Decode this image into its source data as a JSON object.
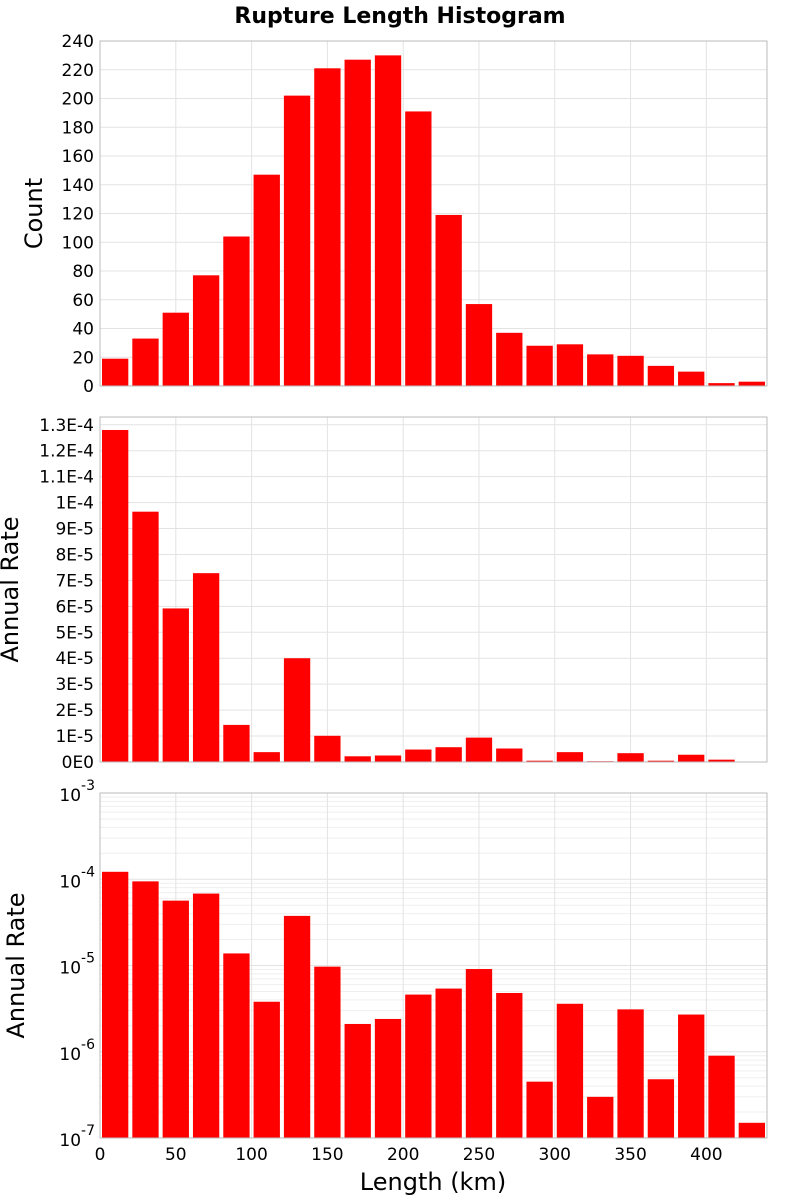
{
  "chart_data": {
    "title": "Rupture Length Histogram",
    "bar_color": "#ff0000",
    "grid": true,
    "xlabel": "Length (km)",
    "x_ticks": [
      "0",
      "50",
      "100",
      "150",
      "200",
      "250",
      "300",
      "350",
      "400"
    ],
    "xlim": [
      0,
      440
    ],
    "bin_width": 20,
    "panels": [
      {
        "type": "bar",
        "ylabel": "Count",
        "scale": "linear",
        "ylim": [
          0,
          240
        ],
        "y_ticks": [
          {
            "v": 0,
            "label": "0"
          },
          {
            "v": 20,
            "label": "20"
          },
          {
            "v": 40,
            "label": "40"
          },
          {
            "v": 60,
            "label": "60"
          },
          {
            "v": 80,
            "label": "80"
          },
          {
            "v": 100,
            "label": "100"
          },
          {
            "v": 120,
            "label": "120"
          },
          {
            "v": 140,
            "label": "140"
          },
          {
            "v": 160,
            "label": "160"
          },
          {
            "v": 180,
            "label": "180"
          },
          {
            "v": 200,
            "label": "200"
          },
          {
            "v": 220,
            "label": "220"
          },
          {
            "v": 240,
            "label": "240"
          }
        ],
        "bin_centers": [
          10,
          30,
          50,
          70,
          90,
          110,
          130,
          150,
          170,
          190,
          210,
          230,
          250,
          270,
          290,
          310,
          330,
          350,
          370,
          390,
          410,
          430
        ],
        "values": [
          19,
          33,
          51,
          77,
          104,
          147,
          202,
          221,
          227,
          230,
          191,
          119,
          57,
          37,
          28,
          29,
          22,
          21,
          14,
          10,
          2,
          3
        ]
      },
      {
        "type": "bar",
        "ylabel": "Annual Rate",
        "scale": "linear",
        "ylim": [
          0,
          0.000133
        ],
        "y_ticks": [
          {
            "v": 0,
            "label": "0E0"
          },
          {
            "v": 1e-05,
            "label": "1E-5"
          },
          {
            "v": 2e-05,
            "label": "2E-5"
          },
          {
            "v": 3e-05,
            "label": "3E-5"
          },
          {
            "v": 4e-05,
            "label": "4E-5"
          },
          {
            "v": 5e-05,
            "label": "5E-5"
          },
          {
            "v": 6e-05,
            "label": "6E-5"
          },
          {
            "v": 7e-05,
            "label": "7E-5"
          },
          {
            "v": 8e-05,
            "label": "8E-5"
          },
          {
            "v": 9e-05,
            "label": "9E-5"
          },
          {
            "v": 0.0001,
            "label": "1E-4"
          },
          {
            "v": 0.00011,
            "label": "1.1E-4"
          },
          {
            "v": 0.00012,
            "label": "1.2E-4"
          },
          {
            "v": 0.00013,
            "label": "1.3E-4"
          }
        ],
        "bin_centers": [
          10,
          30,
          50,
          70,
          90,
          110,
          130,
          150,
          170,
          190,
          210,
          230,
          250,
          270,
          290,
          310,
          330,
          350,
          370,
          390,
          410,
          430
        ],
        "values": [
          0.000128,
          9.65e-05,
          5.92e-05,
          7.28e-05,
          1.43e-05,
          3.8e-06,
          4e-05,
          1.01e-05,
          2.2e-06,
          2.5e-06,
          4.8e-06,
          5.7e-06,
          9.4e-06,
          5.2e-06,
          5e-07,
          3.8e-06,
          3e-07,
          3.4e-06,
          5e-07,
          2.8e-06,
          9e-07,
          1.5e-07
        ]
      },
      {
        "type": "bar",
        "ylabel": "Annual Rate",
        "scale": "log",
        "ylim": [
          1e-07,
          0.001
        ],
        "y_ticks": [
          {
            "v": 1e-07,
            "base": "10",
            "exp": "-7"
          },
          {
            "v": 1e-06,
            "base": "10",
            "exp": "-6"
          },
          {
            "v": 1e-05,
            "base": "10",
            "exp": "-5"
          },
          {
            "v": 0.0001,
            "base": "10",
            "exp": "-4"
          },
          {
            "v": 0.001,
            "base": "10",
            "exp": "-3"
          }
        ],
        "bin_centers": [
          10,
          30,
          50,
          70,
          90,
          110,
          130,
          150,
          170,
          190,
          210,
          230,
          250,
          270,
          290,
          310,
          330,
          350,
          370,
          390,
          410,
          430
        ],
        "values": [
          0.000122,
          9.45e-05,
          5.65e-05,
          6.82e-05,
          1.38e-05,
          3.8e-06,
          3.76e-05,
          9.7e-06,
          2.1e-06,
          2.4e-06,
          4.6e-06,
          5.4e-06,
          9.1e-06,
          4.8e-06,
          4.5e-07,
          3.6e-06,
          3e-07,
          3.1e-06,
          4.8e-07,
          2.7e-06,
          9e-07,
          1.5e-07
        ]
      }
    ]
  }
}
